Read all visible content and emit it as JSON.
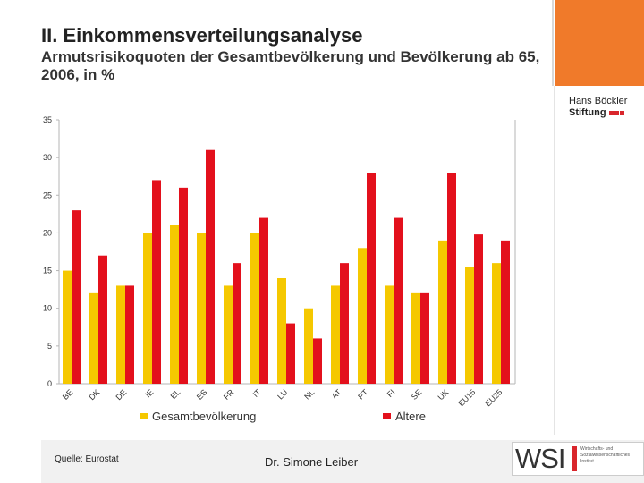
{
  "header": {
    "title": "II. Einkommensverteilungsanalyse",
    "subtitle": "Armutsrisikoquoten der Gesamtbevölkerung und Bevölkerung ab 65, 2006, in %"
  },
  "logo": {
    "line1": "Hans Böckler",
    "line2": "Stiftung"
  },
  "footer": {
    "source": "Quelle: Eurostat",
    "author": "Dr. Simone Leiber",
    "wsi_logo": "WSI",
    "wsi_sub": "Wirtschafts- und Sozialwissenschaftliches Institut"
  },
  "colors": {
    "accent_orange": "#f07a2a",
    "series_total": "#f5c800",
    "series_elderly": "#e3101c"
  },
  "chart_data": {
    "type": "bar",
    "title": "",
    "xlabel": "",
    "ylabel": "",
    "ylim": [
      0,
      35
    ],
    "yticks": [
      0,
      5,
      10,
      15,
      20,
      25,
      30,
      35
    ],
    "grid": false,
    "legend_position": "bottom",
    "categories": [
      "BE",
      "DK",
      "DE",
      "IE",
      "EL",
      "ES",
      "FR",
      "IT",
      "LU",
      "NL",
      "AT",
      "PT",
      "FI",
      "SE",
      "UK",
      "EU15",
      "EU25"
    ],
    "series": [
      {
        "name": "Gesamtbevölkerung",
        "color": "#f5c800",
        "values": [
          15,
          12,
          13,
          20,
          21,
          20,
          13,
          20,
          14,
          10,
          13,
          18,
          13,
          12,
          19,
          15.5,
          16
        ]
      },
      {
        "name": "Ältere",
        "color": "#e3101c",
        "values": [
          23,
          17,
          13,
          27,
          26,
          31,
          16,
          22,
          8,
          6,
          16,
          28,
          22,
          12,
          28,
          19.8,
          19
        ]
      }
    ]
  }
}
